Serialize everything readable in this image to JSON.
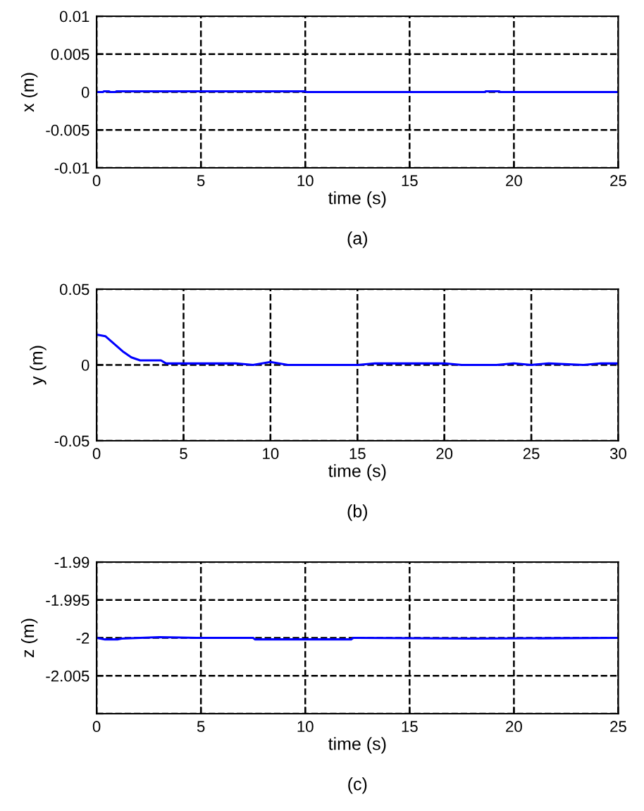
{
  "chart_data": [
    {
      "type": "line",
      "xlabel": "time (s)",
      "ylabel": "x (m)",
      "annotations": [
        "(a)"
      ],
      "xlim": [
        0,
        25
      ],
      "ylim": [
        -0.01,
        0.01
      ],
      "xticks": [
        0,
        5,
        10,
        15,
        20,
        25
      ],
      "yticks": [
        -0.01,
        -0.005,
        0,
        0.005,
        0.01
      ],
      "grid": true,
      "line_style": "solid",
      "series": [
        {
          "color": "#0000ff",
          "x": [
            0,
            0.3,
            0.35,
            0.6,
            0.65,
            0.9,
            0.95,
            10,
            10.05,
            18.6,
            18.65,
            19.3,
            19.35,
            25
          ],
          "values": [
            0,
            0,
            0.0001,
            0.0001,
            0,
            0,
            0.0001,
            0.0001,
            0,
            0,
            0.0001,
            0.0001,
            0,
            0
          ]
        }
      ]
    },
    {
      "type": "line",
      "xlabel": "time (s)",
      "ylabel": "y (m)",
      "annotations": [
        "(b)"
      ],
      "xlim": [
        0,
        30
      ],
      "ylim": [
        -0.05,
        0.05
      ],
      "xticks": [
        0,
        5,
        10,
        15,
        20,
        25,
        30
      ],
      "yticks": [
        -0.05,
        0,
        0.05
      ],
      "grid": true,
      "line_style": "solid",
      "series": [
        {
          "color": "#0000ff",
          "x": [
            0,
            0.5,
            1,
            1.5,
            2,
            2.5,
            3.7,
            4,
            8,
            9,
            10,
            11,
            15,
            16,
            20,
            21,
            23,
            24,
            25,
            26,
            28,
            29,
            30
          ],
          "values": [
            0.02,
            0.019,
            0.014,
            0.009,
            0.005,
            0.003,
            0.003,
            0.001,
            0.001,
            0.0,
            0.002,
            0.0,
            0.0,
            0.001,
            0.001,
            0.0,
            0.0,
            0.001,
            0.0,
            0.001,
            0.0,
            0.001,
            0.001
          ]
        }
      ]
    },
    {
      "type": "line",
      "xlabel": "time (s)",
      "ylabel": "z (m)",
      "annotations": [
        "(c)"
      ],
      "xlim": [
        0,
        25
      ],
      "ylim": [
        -2.01,
        -1.99
      ],
      "xticks": [
        0,
        5,
        10,
        15,
        20,
        25
      ],
      "yticks": [
        {
          "value": -2.01,
          "label": null
        },
        -2.005,
        -2,
        -1.995,
        -1.99
      ],
      "grid": true,
      "line_style": "solid",
      "series": [
        {
          "color": "#0000ff",
          "x": [
            0,
            0.4,
            1,
            1.2,
            3,
            4.8,
            5,
            7.5,
            7.6,
            12.2,
            12.3,
            18,
            25
          ],
          "values": [
            -2.0,
            -2.0002,
            -2.0002,
            -2.0001,
            -1.9999,
            -2.0,
            -2.0,
            -2.0,
            -2.0002,
            -2.0002,
            -2.0,
            -2.0001,
            -2.0
          ]
        }
      ]
    }
  ]
}
